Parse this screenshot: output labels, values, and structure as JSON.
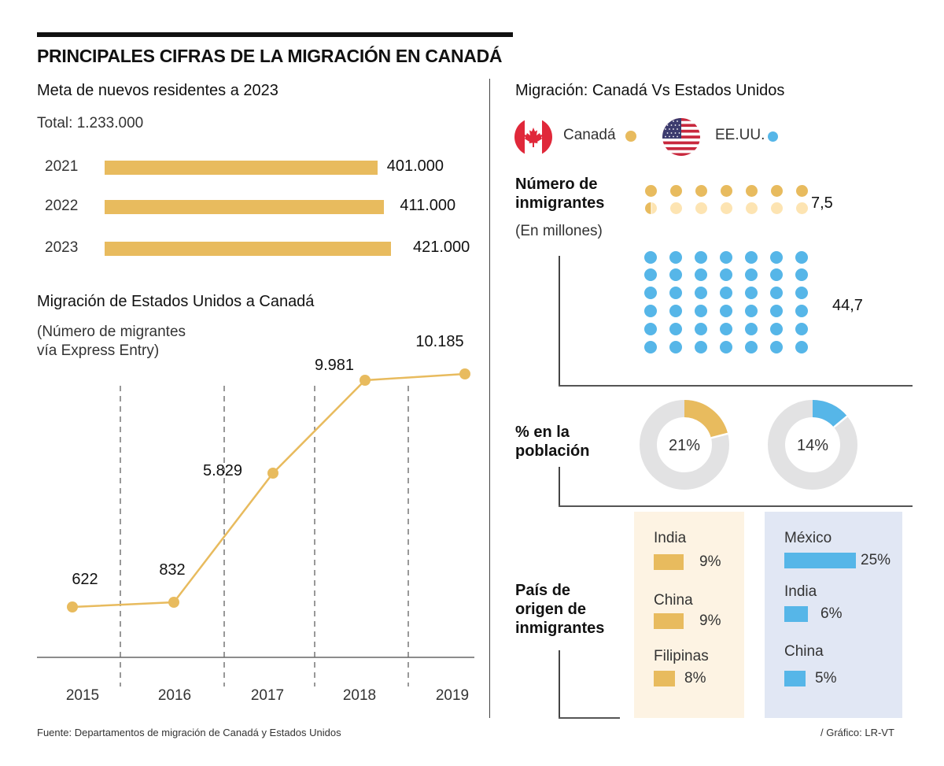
{
  "title": "PRINCIPALES CIFRAS DE LA MIGRACIÓN EN CANADÁ",
  "colors": {
    "canada_gold": "#e8bb5e",
    "canada_light": "#fde4b2",
    "usa_blue": "#56b6e8",
    "donut_gray": "#e2e2e3",
    "panel_ca_bg": "#fdf3e3",
    "panel_us_bg": "#e1e7f4"
  },
  "targets": {
    "title": "Meta de nuevos residentes a 2023",
    "total": "Total: 1.233.000",
    "chart_data": {
      "type": "bar",
      "orientation": "horizontal",
      "title": "Meta de nuevos residentes a 2023",
      "categories": [
        "2021",
        "2022",
        "2023"
      ],
      "values": [
        401000,
        411000,
        421000
      ],
      "labels": [
        "401.000",
        "411.000",
        "421.000"
      ]
    }
  },
  "line_section": {
    "title": "Migración de Estados Unidos a Canadá",
    "subtitle_line1": "(Número de migrantes",
    "subtitle_line2": "vía Express Entry)",
    "chart_data": {
      "type": "line",
      "title": "Migración de Estados Unidos a Canadá",
      "subtitle": "(Número de migrantes vía Express Entry)",
      "categories": [
        "2015",
        "2016",
        "2017",
        "2018",
        "2019"
      ],
      "values": [
        622,
        832,
        5829,
        9981,
        10185
      ],
      "labels": [
        "622",
        "832",
        "5.829",
        "9.981",
        "10.185"
      ],
      "xlabel": "",
      "ylabel": "",
      "grid": "vertical dashed separators",
      "ylim": [
        0,
        11000
      ]
    }
  },
  "comparison": {
    "title": "Migración: Canadá Vs Estados Unidos",
    "legend": [
      {
        "label": "Canadá",
        "icon": "canada-flag-icon"
      },
      {
        "label": "EE.UU.",
        "icon": "usa-flag-icon"
      }
    ],
    "immigrants": {
      "label_line1": "Número de",
      "label_line2": "inmigrantes",
      "unit": "(En millones)",
      "chart_data": {
        "type": "pictogram",
        "title": "Número de inmigrantes (En millones)",
        "series": [
          {
            "name": "Canadá",
            "value": 7.5,
            "label": "7,5",
            "full_dots": 7,
            "partial_dot_fraction": 0.5,
            "total_dots": 14
          },
          {
            "name": "EE.UU.",
            "value": 44.7,
            "label": "44,7",
            "full_dots": 42,
            "total_dots": 42
          }
        ]
      }
    },
    "population": {
      "label_line1": "% en la",
      "label_line2": "población",
      "chart_data": {
        "type": "pie",
        "subtype": "donut",
        "title": "% en la población",
        "series": [
          {
            "name": "Canadá",
            "value": 21,
            "label": "21%"
          },
          {
            "name": "EE.UU.",
            "value": 14,
            "label": "14%"
          }
        ]
      }
    },
    "origin": {
      "label_line1": "País de",
      "label_line2": "origen de",
      "label_line3": "inmigrantes",
      "chart_data": {
        "type": "bar",
        "orientation": "horizontal",
        "title": "País de origen de inmigrantes",
        "series": [
          {
            "name": "Canadá",
            "categories": [
              "India",
              "China",
              "Filipinas"
            ],
            "values": [
              9,
              9,
              8
            ],
            "labels": [
              "9%",
              "9%",
              "8%"
            ]
          },
          {
            "name": "EE.UU.",
            "categories": [
              "México",
              "India",
              "China"
            ],
            "values": [
              25,
              6,
              5
            ],
            "labels": [
              "25%",
              "6%",
              "5%"
            ]
          }
        ]
      }
    }
  },
  "footer": {
    "source": "Fuente:  Departamentos de migración de Canadá y Estados Unidos",
    "credit": "/ Gráfico: LR-VT"
  }
}
